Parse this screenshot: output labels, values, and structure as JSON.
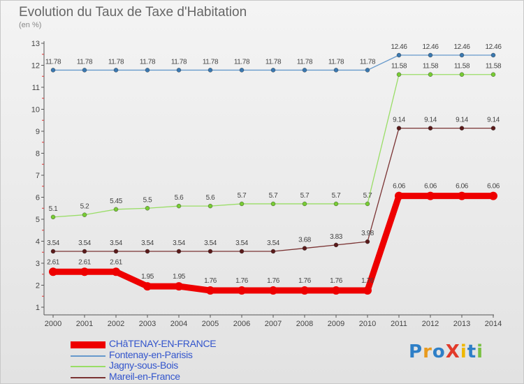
{
  "chart_data": {
    "type": "line",
    "title": "Evolution du Taux de Taxe d'Habitation",
    "subtitle": "(en %)",
    "x": [
      "2000",
      "2001",
      "2002",
      "2003",
      "2004",
      "2005",
      "2006",
      "2007",
      "2008",
      "2009",
      "2010",
      "2011",
      "2012",
      "2013",
      "2014"
    ],
    "ylim": [
      0.5,
      13
    ],
    "yticks": [
      1,
      2,
      3,
      4,
      5,
      6,
      7,
      8,
      9,
      10,
      11,
      12,
      13
    ],
    "grid": false,
    "legend_position": "bottom-left",
    "series": [
      {
        "name": "Fontenay-en-Parisis",
        "color": "#6699cc",
        "marker": "#3a78b0",
        "values": [
          11.78,
          11.78,
          11.78,
          11.78,
          11.78,
          11.78,
          11.78,
          11.78,
          11.78,
          11.78,
          11.78,
          12.46,
          12.46,
          12.46,
          12.46
        ],
        "labels": [
          "11.78",
          "11.78",
          "11.78",
          "11.78",
          "11.78",
          "11.78",
          "11.78",
          "11.78",
          "11.78",
          "11.78",
          "11.78",
          "12.46",
          "12.46",
          "12.46",
          "12.46"
        ]
      },
      {
        "name": "Jagny-sous-Bois",
        "color": "#99dd66",
        "marker": "#77cc33",
        "values": [
          5.1,
          5.2,
          5.45,
          5.5,
          5.6,
          5.6,
          5.7,
          5.7,
          5.7,
          5.7,
          5.7,
          11.58,
          11.58,
          11.58,
          11.58
        ],
        "labels": [
          "5.1",
          "5.2",
          "5.45",
          "5.5",
          "5.6",
          "5.6",
          "5.7",
          "5.7",
          "5.7",
          "5.7",
          "5.7",
          "11.58",
          "11.58",
          "11.58",
          "11.58"
        ]
      },
      {
        "name": "Mareil-en-France",
        "color": "#7a3333",
        "marker": "#5a1a1a",
        "values": [
          3.54,
          3.54,
          3.54,
          3.54,
          3.54,
          3.54,
          3.54,
          3.54,
          3.68,
          3.83,
          3.98,
          9.14,
          9.14,
          9.14,
          9.14
        ],
        "labels": [
          "3.54",
          "3.54",
          "3.54",
          "3.54",
          "3.54",
          "3.54",
          "3.54",
          "3.54",
          "3.68",
          "3.83",
          "3.98",
          "9.14",
          "9.14",
          "9.14",
          "9.14"
        ]
      },
      {
        "name": "CHâTENAY-EN-FRANCE",
        "color": "#ee0000",
        "marker": "#ee0000",
        "thick": true,
        "values": [
          2.61,
          2.61,
          2.61,
          1.95,
          1.95,
          1.76,
          1.76,
          1.76,
          1.76,
          1.76,
          1.76,
          6.06,
          6.06,
          6.06,
          6.06
        ],
        "labels": [
          "2.61",
          "2.61",
          "2.61",
          "1.95",
          "1.95",
          "1.76",
          "1.76",
          "1.76",
          "1.76",
          "1.76",
          "1.76",
          "6.06",
          "6.06",
          "6.06",
          "6.06"
        ]
      }
    ]
  },
  "legend": {
    "items": [
      {
        "label": "CHâTENAY-EN-FRANCE",
        "color": "#ee0000"
      },
      {
        "label": "Fontenay-en-Parisis",
        "color": "#6699cc"
      },
      {
        "label": "Jagny-sous-Bois",
        "color": "#99dd66"
      },
      {
        "label": "Mareil-en-France",
        "color": "#7a3333"
      }
    ]
  },
  "logo": {
    "text": "ProXiti",
    "letters": [
      {
        "ch": "P",
        "color": "#2e7fc7"
      },
      {
        "ch": "r",
        "color": "#e89a1e"
      },
      {
        "ch": "o",
        "color": "#2e7fc7"
      },
      {
        "ch": "X",
        "color": "#e23a2a"
      },
      {
        "ch": "i",
        "color": "#f0b800"
      },
      {
        "ch": "t",
        "color": "#2e7fc7"
      },
      {
        "ch": "i",
        "color": "#7ac143"
      }
    ]
  }
}
